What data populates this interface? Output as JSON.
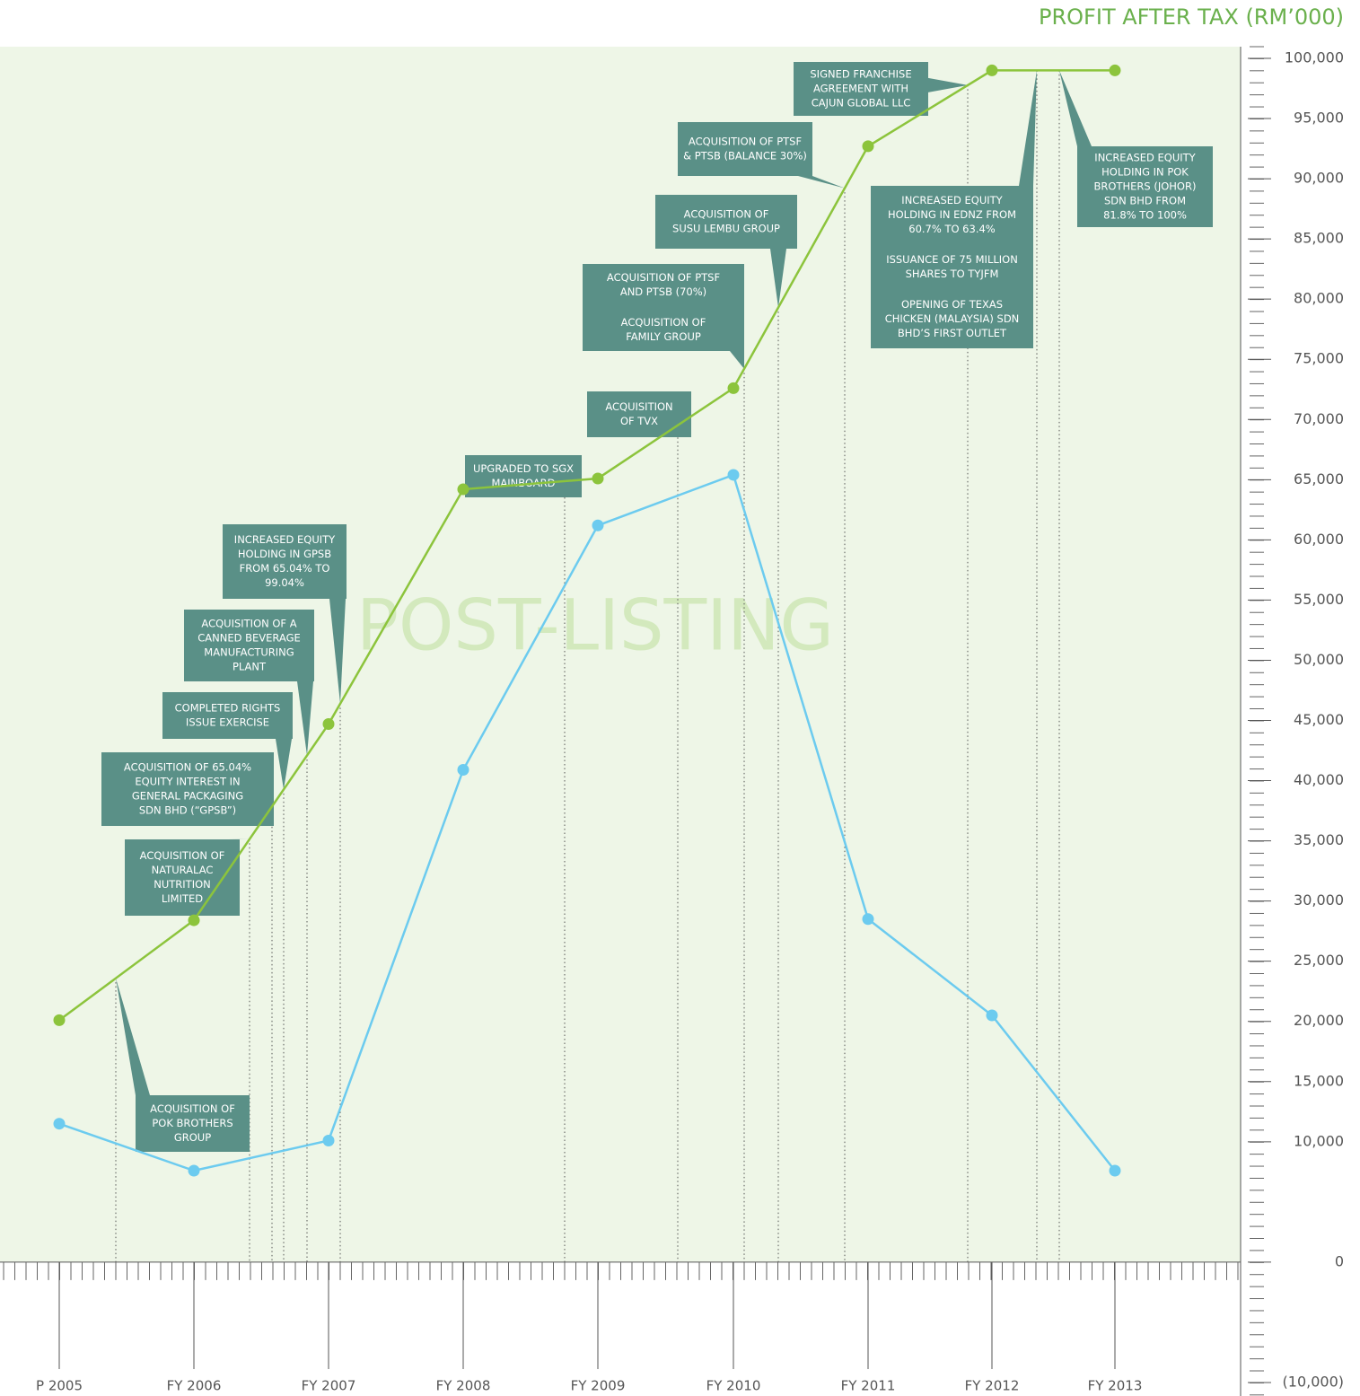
{
  "chart_data": {
    "type": "line",
    "title": "PROFIT AFTER TAX (RM’000)",
    "watermark": "POST-LISTING",
    "categories": [
      "P 2005",
      "FY 2006",
      "FY 2007",
      "FY 2008",
      "FY 2009",
      "FY 2010",
      "FY 2011",
      "FY 2012",
      "FY 2013"
    ],
    "series": [
      {
        "color": "#8cc43c",
        "values": [
          20100,
          28400,
          44700,
          64200,
          65100,
          72600,
          92700,
          99000,
          99000
        ]
      },
      {
        "color": "#6ccbef",
        "values": [
          11500,
          7600,
          10100,
          40900,
          61200,
          65400,
          28500,
          20500,
          7600
        ]
      }
    ],
    "ylim": [
      -10000,
      100000
    ],
    "yticks": [
      {
        "value": 100000,
        "label": "100,000"
      },
      {
        "value": 95000,
        "label": "95,000"
      },
      {
        "value": 90000,
        "label": "90,000"
      },
      {
        "value": 85000,
        "label": "85,000"
      },
      {
        "value": 80000,
        "label": "80,000"
      },
      {
        "value": 75000,
        "label": "75,000"
      },
      {
        "value": 70000,
        "label": "70,000"
      },
      {
        "value": 65000,
        "label": "65,000"
      },
      {
        "value": 60000,
        "label": "60,000"
      },
      {
        "value": 55000,
        "label": "55,000"
      },
      {
        "value": 50000,
        "label": "50,000"
      },
      {
        "value": 45000,
        "label": "45,000"
      },
      {
        "value": 40000,
        "label": "40,000"
      },
      {
        "value": 35000,
        "label": "35,000"
      },
      {
        "value": 30000,
        "label": "30,000"
      },
      {
        "value": 25000,
        "label": "25,000"
      },
      {
        "value": 20000,
        "label": "20,000"
      },
      {
        "value": 15000,
        "label": "15,000"
      },
      {
        "value": 10000,
        "label": "10,000"
      },
      0,
      {
        "value": -10000,
        "label": "(10,000)"
      }
    ],
    "annotations": [
      {
        "paragraphs": [
          [
            "SIGNED FRANCHISE",
            "AGREEMENT WITH",
            "CAJUN GLOBAL LLC"
          ]
        ]
      },
      {
        "paragraphs": [
          [
            "ACQUISITION OF PTSF",
            "& PTSB (BALANCE 30%)"
          ]
        ]
      },
      {
        "paragraphs": [
          [
            "ACQUISITION OF",
            "SUSU LEMBU GROUP"
          ]
        ]
      },
      {
        "paragraphs": [
          [
            "ACQUISITION OF PTSF",
            "AND PTSB (70%)"
          ],
          [
            "ACQUISITION OF",
            "FAMILY GROUP"
          ]
        ]
      },
      {
        "paragraphs": [
          [
            "ACQUISITION",
            "OF TVX"
          ]
        ]
      },
      {
        "paragraphs": [
          [
            "UPGRADED TO SGX",
            "MAINBOARD"
          ]
        ]
      },
      {
        "paragraphs": [
          [
            "INCREASED EQUITY",
            "HOLDING IN GPSB",
            "FROM 65.04% TO",
            "99.04%"
          ]
        ]
      },
      {
        "paragraphs": [
          [
            "ACQUISITION OF A",
            "CANNED BEVERAGE",
            "MANUFACTURING",
            "PLANT"
          ]
        ]
      },
      {
        "paragraphs": [
          [
            "COMPLETED RIGHTS",
            "ISSUE EXERCISE"
          ]
        ]
      },
      {
        "paragraphs": [
          [
            "ACQUISITION OF 65.04%",
            "EQUITY INTEREST IN",
            "GENERAL PACKAGING",
            "SDN BHD (“GPSB”)"
          ]
        ]
      },
      {
        "paragraphs": [
          [
            "ACQUISITION OF",
            "NATURALAC",
            "NUTRITION",
            "LIMITED"
          ]
        ]
      },
      {
        "paragraphs": [
          [
            "ACQUISITION OF",
            "POK BROTHERS",
            "GROUP"
          ]
        ]
      },
      {
        "paragraphs": [
          [
            "INCREASED EQUITY",
            "HOLDING IN EDNZ FROM",
            "60.7% TO 63.4%"
          ],
          [
            "ISSUANCE OF 75 MILLION",
            "SHARES TO TYJFM"
          ],
          [
            "OPENING OF TEXAS",
            "CHICKEN (MALAYSIA) SDN",
            "BHD’S FIRST OUTLET"
          ]
        ]
      },
      {
        "paragraphs": [
          [
            "INCREASED EQUITY",
            "HOLDING IN POK",
            "BROTHERS (JOHOR)",
            "SDN BHD FROM",
            "81.8% TO 100%"
          ]
        ]
      }
    ]
  }
}
